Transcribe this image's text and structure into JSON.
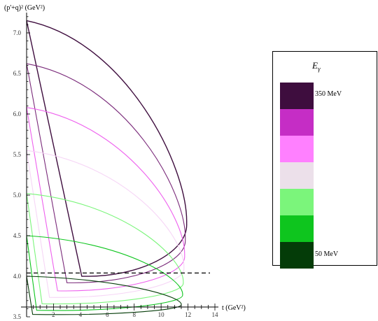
{
  "chart_data": {
    "type": "line",
    "xlabel": "t (GeV²)",
    "ylabel": "(p'+q)² (GeV²)",
    "xlim": [
      0,
      14
    ],
    "ylim": [
      3.5,
      7.25
    ],
    "x_ticks": [
      2,
      4,
      6,
      8,
      10,
      12,
      14
    ],
    "y_ticks": [
      3.5,
      4.0,
      4.5,
      5.0,
      5.5,
      6.0,
      6.5,
      7.0
    ],
    "threshold_line": {
      "y": 4.04,
      "style": "dashed",
      "color": "#000000"
    },
    "legend": {
      "title": "E",
      "title_subscript": "γ",
      "colors": [
        "#3e0d3e",
        "#c52dc5",
        "#ff80ff",
        "#ece0ea",
        "#7bf57b",
        "#0ec51e",
        "#043c08"
      ],
      "top_label": "350 MeV",
      "bottom_label": "50 MeV"
    },
    "series": [
      {
        "color": "#3e0d3e",
        "points": [
          [
            0.0,
            7.15
          ],
          [
            11.9,
            4.65
          ],
          [
            0.0,
            7.15
          ],
          [
            4.1,
            4.0
          ],
          [
            0.0,
            7.15
          ]
        ]
      },
      {
        "color": "#7a2a7a",
        "points": [
          [
            0.0,
            6.62
          ],
          [
            11.8,
            4.45
          ],
          [
            0.0,
            6.62
          ],
          [
            3.0,
            3.92
          ],
          [
            0.0,
            6.62
          ]
        ]
      },
      {
        "color": "#ee60ee",
        "points": [
          [
            0.0,
            6.08
          ],
          [
            11.75,
            4.25
          ],
          [
            0.0,
            6.08
          ],
          [
            2.3,
            3.82
          ],
          [
            0.0,
            6.08
          ]
        ]
      },
      {
        "color": "#f6d6f6",
        "points": [
          [
            0.0,
            5.55
          ],
          [
            11.7,
            4.1
          ],
          [
            0.0,
            5.55
          ],
          [
            1.7,
            3.74
          ],
          [
            0.0,
            5.55
          ]
        ]
      },
      {
        "color": "#7bf57b",
        "points": [
          [
            0.0,
            5.02
          ],
          [
            11.65,
            3.92
          ],
          [
            0.0,
            5.02
          ],
          [
            1.15,
            3.66
          ],
          [
            0.0,
            5.02
          ]
        ]
      },
      {
        "color": "#0ec51e",
        "points": [
          [
            0.0,
            4.5
          ],
          [
            11.6,
            3.77
          ],
          [
            0.0,
            4.5
          ],
          [
            0.75,
            3.58
          ],
          [
            0.0,
            4.5
          ]
        ]
      },
      {
        "color": "#043c08",
        "points": [
          [
            0.0,
            4.0
          ],
          [
            11.5,
            3.65
          ],
          [
            0.0,
            4.0
          ],
          [
            0.45,
            3.53
          ],
          [
            0.0,
            4.0
          ]
        ]
      }
    ]
  }
}
